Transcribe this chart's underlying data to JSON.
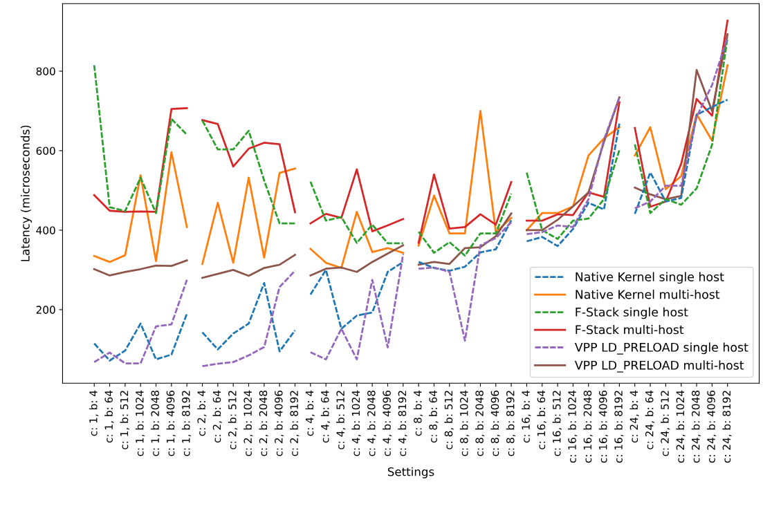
{
  "chart_data": {
    "type": "line",
    "xlabel": "Settings",
    "ylabel": "Latency (microseconds)",
    "categories": [
      "c: 1, b: 4",
      "c: 1, b: 64",
      "c: 1, b: 512",
      "c: 1, b: 1024",
      "c: 1, b: 2048",
      "c: 1, b: 4096",
      "c: 1, b: 8192",
      "c: 2, b: 4",
      "c: 2, b: 64",
      "c: 2, b: 512",
      "c: 2, b: 1024",
      "c: 2, b: 2048",
      "c: 2, b: 4096",
      "c: 2, b: 8192",
      "c: 4, b: 4",
      "c: 4, b: 64",
      "c: 4, b: 512",
      "c: 4, b: 1024",
      "c: 4, b: 2048",
      "c: 4, b: 4096",
      "c: 4, b: 8192",
      "c: 8, b: 4",
      "c: 8, b: 64",
      "c: 8, b: 512",
      "c: 8, b: 1024",
      "c: 8, b: 2048",
      "c: 8, b: 4096",
      "c: 8, b: 8192",
      "c: 16, b: 4",
      "c: 16, b: 64",
      "c: 16, b: 512",
      "c: 16, b: 1024",
      "c: 16, b: 2048",
      "c: 16, b: 4096",
      "c: 16, b: 8192",
      "c: 24, b: 4",
      "c: 24, b: 64",
      "c: 24, b: 512",
      "c: 24, b: 1024",
      "c: 24, b: 2048",
      "c: 24, b: 4096",
      "c: 24, b: 8192"
    ],
    "ylim": [
      15,
      970
    ],
    "yticks": [
      200,
      400,
      600,
      800
    ],
    "grid": false,
    "legend": "bottom right",
    "series": [
      {
        "name": "Native Kernel single host",
        "color": "#1f77b4",
        "line_style": "dashed",
        "values": [
          115,
          72,
          97,
          165,
          75,
          87,
          190,
          null,
          null,
          null,
          null,
          null,
          null,
          null,
          null,
          null,
          null,
          null,
          null,
          null,
          null,
          null,
          null,
          null,
          null,
          null,
          null,
          null,
          null,
          null,
          null,
          null,
          null,
          null,
          null,
          null,
          null,
          null,
          null,
          null,
          null,
          null
        ]
      },
      {
        "color": "#1f77b4",
        "line_style": "dashed",
        "values": [
          null,
          null,
          null,
          null,
          null,
          null,
          null,
          143,
          100,
          140,
          165,
          267,
          95,
          148,
          null,
          null,
          null,
          null,
          null,
          null,
          null,
          null,
          null,
          null,
          null,
          null,
          null,
          null,
          null,
          null,
          null,
          null,
          null,
          null,
          null,
          null,
          null,
          null,
          null,
          null,
          null,
          null
        ]
      },
      {
        "color": "#1f77b4",
        "line_style": "dashed",
        "values": [
          null,
          null,
          null,
          null,
          null,
          null,
          null,
          null,
          null,
          null,
          null,
          null,
          null,
          null,
          238,
          300,
          152,
          185,
          193,
          295,
          320,
          null,
          null,
          null,
          null,
          null,
          null,
          null,
          null,
          null,
          null,
          null,
          null,
          null,
          null,
          null,
          null,
          null,
          null,
          null,
          null,
          null
        ]
      },
      {
        "color": "#1f77b4",
        "line_style": "dashed",
        "values": [
          null,
          null,
          null,
          null,
          null,
          null,
          null,
          null,
          null,
          null,
          null,
          null,
          null,
          null,
          null,
          null,
          null,
          null,
          null,
          null,
          null,
          320,
          305,
          298,
          308,
          344,
          352,
          425,
          null,
          null,
          null,
          null,
          null,
          null,
          null,
          null,
          null,
          null,
          null,
          null,
          null,
          null
        ]
      },
      {
        "color": "#1f77b4",
        "line_style": "dashed",
        "values": [
          null,
          null,
          null,
          null,
          null,
          null,
          null,
          null,
          null,
          null,
          null,
          null,
          null,
          null,
          null,
          null,
          null,
          null,
          null,
          null,
          null,
          null,
          null,
          null,
          null,
          null,
          null,
          null,
          372,
          383,
          360,
          403,
          469,
          452,
          668,
          null,
          null,
          null,
          null,
          null,
          null,
          null
        ]
      },
      {
        "color": "#1f77b4",
        "line_style": "dashed",
        "values": [
          null,
          null,
          null,
          null,
          null,
          null,
          null,
          null,
          null,
          null,
          null,
          null,
          null,
          null,
          null,
          null,
          null,
          null,
          null,
          null,
          null,
          null,
          null,
          null,
          null,
          null,
          null,
          null,
          null,
          null,
          null,
          null,
          null,
          null,
          null,
          441,
          545,
          472,
          481,
          690,
          710,
          728
        ]
      },
      {
        "name": "Native Kernel multi-host",
        "color": "#ff7f0e",
        "line_style": "solid",
        "values": [
          335,
          320,
          337,
          538,
          322,
          596,
          408,
          null,
          null,
          null,
          null,
          null,
          null,
          null,
          null,
          null,
          null,
          null,
          null,
          null,
          null,
          null,
          null,
          null,
          null,
          null,
          null,
          null,
          null,
          null,
          null,
          null,
          null,
          null,
          null,
          null,
          null,
          null,
          null,
          null,
          null,
          null
        ]
      },
      {
        "color": "#ff7f0e",
        "line_style": "solid",
        "values": [
          null,
          null,
          null,
          null,
          null,
          null,
          null,
          315,
          469,
          318,
          532,
          331,
          544,
          555,
          null,
          null,
          null,
          null,
          null,
          null,
          null,
          null,
          null,
          null,
          null,
          null,
          null,
          null,
          null,
          null,
          null,
          null,
          null,
          null,
          null,
          null,
          null,
          null,
          null,
          null,
          null,
          null
        ]
      },
      {
        "color": "#ff7f0e",
        "line_style": "solid",
        "values": [
          null,
          null,
          null,
          null,
          null,
          null,
          null,
          null,
          null,
          null,
          null,
          null,
          null,
          null,
          353,
          318,
          305,
          446,
          345,
          355,
          343,
          null,
          null,
          null,
          null,
          null,
          null,
          null,
          null,
          null,
          null,
          null,
          null,
          null,
          null,
          null,
          null,
          null,
          null,
          null,
          null,
          null
        ]
      },
      {
        "color": "#ff7f0e",
        "line_style": "solid",
        "values": [
          null,
          null,
          null,
          null,
          null,
          null,
          null,
          null,
          null,
          null,
          null,
          null,
          null,
          null,
          null,
          null,
          null,
          null,
          null,
          null,
          null,
          361,
          487,
          392,
          392,
          700,
          395,
          431,
          null,
          null,
          null,
          null,
          null,
          null,
          null,
          null,
          null,
          null,
          null,
          null,
          null,
          null
        ]
      },
      {
        "color": "#ff7f0e",
        "line_style": "solid",
        "values": [
          null,
          null,
          null,
          null,
          null,
          null,
          null,
          null,
          null,
          null,
          null,
          null,
          null,
          null,
          null,
          null,
          null,
          null,
          null,
          null,
          null,
          null,
          null,
          null,
          null,
          null,
          null,
          null,
          400,
          443,
          443,
          460,
          588,
          631,
          659,
          null,
          null,
          null,
          null,
          null,
          null,
          null
        ]
      },
      {
        "color": "#ff7f0e",
        "line_style": "solid",
        "values": [
          null,
          null,
          null,
          null,
          null,
          null,
          null,
          null,
          null,
          null,
          null,
          null,
          null,
          null,
          null,
          null,
          null,
          null,
          null,
          null,
          null,
          null,
          null,
          null,
          null,
          null,
          null,
          null,
          null,
          null,
          null,
          null,
          null,
          null,
          null,
          588,
          659,
          503,
          536,
          692,
          625,
          815
        ]
      },
      {
        "name": "F-Stack single host",
        "color": "#2ca02c",
        "line_style": "dashed",
        "values": [
          815,
          458,
          448,
          532,
          443,
          680,
          640,
          null,
          null,
          null,
          null,
          null,
          null,
          null,
          null,
          null,
          null,
          null,
          null,
          null,
          null,
          null,
          null,
          null,
          null,
          null,
          null,
          null,
          null,
          null,
          null,
          null,
          null,
          null,
          null,
          null,
          null,
          null,
          null,
          null,
          null,
          null
        ]
      },
      {
        "color": "#2ca02c",
        "line_style": "dashed",
        "values": [
          null,
          null,
          null,
          null,
          null,
          null,
          null,
          676,
          603,
          603,
          650,
          525,
          417,
          417,
          null,
          null,
          null,
          null,
          null,
          null,
          null,
          null,
          null,
          null,
          null,
          null,
          null,
          null,
          null,
          null,
          null,
          null,
          null,
          null,
          null,
          null,
          null,
          null,
          null,
          null,
          null,
          null
        ]
      },
      {
        "color": "#2ca02c",
        "line_style": "dashed",
        "values": [
          null,
          null,
          null,
          null,
          null,
          null,
          null,
          null,
          null,
          null,
          null,
          null,
          null,
          null,
          522,
          424,
          433,
          368,
          414,
          367,
          367,
          null,
          null,
          null,
          null,
          null,
          null,
          null,
          null,
          null,
          null,
          null,
          null,
          null,
          null,
          null,
          null,
          null,
          null,
          null,
          null,
          null
        ]
      },
      {
        "color": "#2ca02c",
        "line_style": "dashed",
        "values": [
          null,
          null,
          null,
          null,
          null,
          null,
          null,
          null,
          null,
          null,
          null,
          null,
          null,
          null,
          null,
          null,
          null,
          null,
          null,
          null,
          null,
          396,
          343,
          370,
          336,
          392,
          392,
          492,
          null,
          null,
          null,
          null,
          null,
          null,
          null,
          null,
          null,
          null,
          null,
          null,
          null,
          null
        ]
      },
      {
        "color": "#2ca02c",
        "line_style": "dashed",
        "values": [
          null,
          null,
          null,
          null,
          null,
          null,
          null,
          null,
          null,
          null,
          null,
          null,
          null,
          null,
          null,
          null,
          null,
          null,
          null,
          null,
          null,
          null,
          null,
          null,
          null,
          null,
          null,
          null,
          545,
          400,
          378,
          424,
          429,
          478,
          602,
          null,
          null,
          null,
          null,
          null,
          null,
          null
        ]
      },
      {
        "color": "#2ca02c",
        "line_style": "dashed",
        "values": [
          null,
          null,
          null,
          null,
          null,
          null,
          null,
          null,
          null,
          null,
          null,
          null,
          null,
          null,
          null,
          null,
          null,
          null,
          null,
          null,
          null,
          null,
          null,
          null,
          null,
          null,
          null,
          null,
          null,
          null,
          null,
          null,
          null,
          null,
          null,
          616,
          443,
          478,
          464,
          505,
          615,
          885
        ]
      },
      {
        "name": "F-Stack multi-host",
        "color": "#d62728",
        "line_style": "solid",
        "values": [
          488,
          449,
          446,
          447,
          446,
          705,
          707,
          null,
          null,
          null,
          null,
          null,
          null,
          null,
          null,
          null,
          null,
          null,
          null,
          null,
          null,
          null,
          null,
          null,
          null,
          null,
          null,
          null,
          null,
          null,
          null,
          null,
          null,
          null,
          null,
          null,
          null,
          null,
          null,
          null,
          null,
          null
        ]
      },
      {
        "color": "#d62728",
        "line_style": "solid",
        "values": [
          null,
          null,
          null,
          null,
          null,
          null,
          null,
          677,
          667,
          560,
          605,
          620,
          616,
          445,
          null,
          null,
          null,
          null,
          null,
          null,
          null,
          null,
          null,
          null,
          null,
          null,
          null,
          null,
          null,
          null,
          null,
          null,
          null,
          null,
          null,
          null,
          null,
          null,
          null,
          null,
          null,
          null
        ]
      },
      {
        "color": "#d62728",
        "line_style": "solid",
        "values": [
          null,
          null,
          null,
          null,
          null,
          null,
          null,
          null,
          null,
          null,
          null,
          null,
          null,
          null,
          417,
          441,
          431,
          553,
          397,
          412,
          428,
          null,
          null,
          null,
          null,
          null,
          null,
          null,
          null,
          null,
          null,
          null,
          null,
          null,
          null,
          null,
          null,
          null,
          null,
          null,
          null,
          null
        ]
      },
      {
        "color": "#d62728",
        "line_style": "solid",
        "values": [
          null,
          null,
          null,
          null,
          null,
          null,
          null,
          null,
          null,
          null,
          null,
          null,
          null,
          null,
          null,
          null,
          null,
          null,
          null,
          null,
          null,
          368,
          540,
          404,
          408,
          440,
          414,
          521,
          null,
          null,
          null,
          null,
          null,
          null,
          null,
          null,
          null,
          null,
          null,
          null,
          null,
          null
        ]
      },
      {
        "color": "#d62728",
        "line_style": "solid",
        "values": [
          null,
          null,
          null,
          null,
          null,
          null,
          null,
          null,
          null,
          null,
          null,
          null,
          null,
          null,
          null,
          null,
          null,
          null,
          null,
          null,
          null,
          null,
          null,
          null,
          null,
          null,
          null,
          null,
          424,
          424,
          440,
          438,
          495,
          484,
          722,
          null,
          null,
          null,
          null,
          null,
          null,
          null
        ]
      },
      {
        "color": "#d62728",
        "line_style": "solid",
        "values": [
          null,
          null,
          null,
          null,
          null,
          null,
          null,
          null,
          null,
          null,
          null,
          null,
          null,
          null,
          null,
          null,
          null,
          null,
          null,
          null,
          null,
          null,
          null,
          null,
          null,
          null,
          null,
          null,
          null,
          null,
          null,
          null,
          null,
          null,
          null,
          657,
          459,
          472,
          567,
          730,
          688,
          927
        ]
      },
      {
        "name": "VPP LD_PRELOAD single host",
        "color": "#9467bd",
        "line_style": "dashed",
        "values": [
          68,
          92,
          65,
          65,
          158,
          163,
          275,
          null,
          null,
          null,
          null,
          null,
          null,
          null,
          null,
          null,
          null,
          null,
          null,
          null,
          null,
          null,
          null,
          null,
          null,
          null,
          null,
          null,
          null,
          null,
          null,
          null,
          null,
          null,
          null,
          null,
          null,
          null,
          null,
          null,
          null,
          null
        ]
      },
      {
        "color": "#9467bd",
        "line_style": "dashed",
        "values": [
          null,
          null,
          null,
          null,
          null,
          null,
          null,
          58,
          64,
          68,
          85,
          106,
          257,
          298,
          null,
          null,
          null,
          null,
          null,
          null,
          null,
          null,
          null,
          null,
          null,
          null,
          null,
          null,
          null,
          null,
          null,
          null,
          null,
          null,
          null,
          null,
          null,
          null,
          null,
          null,
          null,
          null
        ]
      },
      {
        "color": "#9467bd",
        "line_style": "dashed",
        "values": [
          null,
          null,
          null,
          null,
          null,
          null,
          null,
          null,
          null,
          null,
          null,
          null,
          null,
          null,
          93,
          75,
          152,
          75,
          275,
          105,
          340,
          null,
          null,
          null,
          null,
          null,
          null,
          null,
          null,
          null,
          null,
          null,
          null,
          null,
          null,
          null,
          null,
          null,
          null,
          null,
          null,
          null
        ]
      },
      {
        "color": "#9467bd",
        "line_style": "dashed",
        "values": [
          null,
          null,
          null,
          null,
          null,
          null,
          null,
          null,
          null,
          null,
          null,
          null,
          null,
          null,
          null,
          null,
          null,
          null,
          null,
          null,
          null,
          303,
          306,
          295,
          122,
          362,
          380,
          420,
          null,
          null,
          null,
          null,
          null,
          null,
          null,
          null,
          null,
          null,
          null,
          null,
          null,
          null
        ]
      },
      {
        "color": "#9467bd",
        "line_style": "dashed",
        "values": [
          null,
          null,
          null,
          null,
          null,
          null,
          null,
          null,
          null,
          null,
          null,
          null,
          null,
          null,
          null,
          null,
          null,
          null,
          null,
          null,
          null,
          null,
          null,
          null,
          null,
          null,
          null,
          null,
          390,
          395,
          412,
          408,
          478,
          628,
          734,
          null,
          null,
          null,
          null,
          null,
          null,
          null
        ]
      },
      {
        "color": "#9467bd",
        "line_style": "dashed",
        "values": [
          null,
          null,
          null,
          null,
          null,
          null,
          null,
          null,
          null,
          null,
          null,
          null,
          null,
          null,
          null,
          null,
          null,
          null,
          null,
          null,
          null,
          null,
          null,
          null,
          null,
          null,
          null,
          null,
          null,
          null,
          null,
          null,
          null,
          null,
          null,
          455,
          472,
          512,
          512,
          685,
          765,
          885
        ]
      },
      {
        "name": "VPP LD_PRELOAD multi-host",
        "color": "#8c564b",
        "line_style": "solid",
        "values": [
          302,
          286,
          295,
          302,
          311,
          310,
          324,
          null,
          null,
          null,
          null,
          null,
          null,
          null,
          null,
          null,
          null,
          null,
          null,
          null,
          null,
          null,
          null,
          null,
          null,
          null,
          null,
          null,
          null,
          null,
          null,
          null,
          null,
          null,
          null,
          null,
          null,
          null,
          null,
          null,
          null,
          null
        ]
      },
      {
        "color": "#8c564b",
        "line_style": "solid",
        "values": [
          null,
          null,
          null,
          null,
          null,
          null,
          null,
          280,
          290,
          300,
          285,
          305,
          313,
          338,
          null,
          null,
          null,
          null,
          null,
          null,
          null,
          null,
          null,
          null,
          null,
          null,
          null,
          null,
          null,
          null,
          null,
          null,
          null,
          null,
          null,
          null,
          null,
          null,
          null,
          null,
          null,
          null
        ]
      },
      {
        "color": "#8c564b",
        "line_style": "solid",
        "values": [
          null,
          null,
          null,
          null,
          null,
          null,
          null,
          null,
          null,
          null,
          null,
          null,
          null,
          null,
          286,
          303,
          306,
          295,
          320,
          341,
          362,
          null,
          null,
          null,
          null,
          null,
          null,
          null,
          null,
          null,
          null,
          null,
          null,
          null,
          null,
          null,
          null,
          null,
          null,
          null,
          null,
          null
        ]
      },
      {
        "color": "#8c564b",
        "line_style": "solid",
        "values": [
          null,
          null,
          null,
          null,
          null,
          null,
          null,
          null,
          null,
          null,
          null,
          null,
          null,
          null,
          null,
          null,
          null,
          null,
          null,
          null,
          null,
          313,
          320,
          315,
          355,
          357,
          385,
          442,
          null,
          null,
          null,
          null,
          null,
          null,
          null,
          null,
          null,
          null,
          null,
          null,
          null,
          null
        ]
      },
      {
        "color": "#8c564b",
        "line_style": "solid",
        "values": [
          null,
          null,
          null,
          null,
          null,
          null,
          null,
          null,
          null,
          null,
          null,
          null,
          null,
          null,
          null,
          null,
          null,
          null,
          null,
          null,
          null,
          null,
          null,
          null,
          null,
          null,
          null,
          null,
          400,
          400,
          426,
          460,
          495,
          622,
          734,
          null,
          null,
          null,
          null,
          null,
          null,
          null
        ]
      },
      {
        "color": "#8c564b",
        "line_style": "solid",
        "values": [
          null,
          null,
          null,
          null,
          null,
          null,
          null,
          null,
          null,
          null,
          null,
          null,
          null,
          null,
          null,
          null,
          null,
          null,
          null,
          null,
          null,
          null,
          null,
          null,
          null,
          null,
          null,
          null,
          null,
          null,
          null,
          null,
          null,
          null,
          null,
          507,
          490,
          478,
          486,
          803,
          700,
          893
        ]
      }
    ]
  }
}
